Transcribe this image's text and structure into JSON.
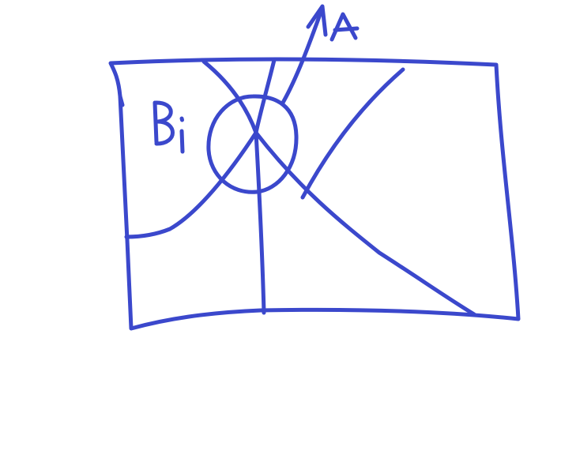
{
  "diagram": {
    "ink_color": "#3b48cc",
    "background_color": "#ffffff",
    "labels": {
      "region_label": "B",
      "region_subscript": "i",
      "arrow_label": "A"
    }
  }
}
